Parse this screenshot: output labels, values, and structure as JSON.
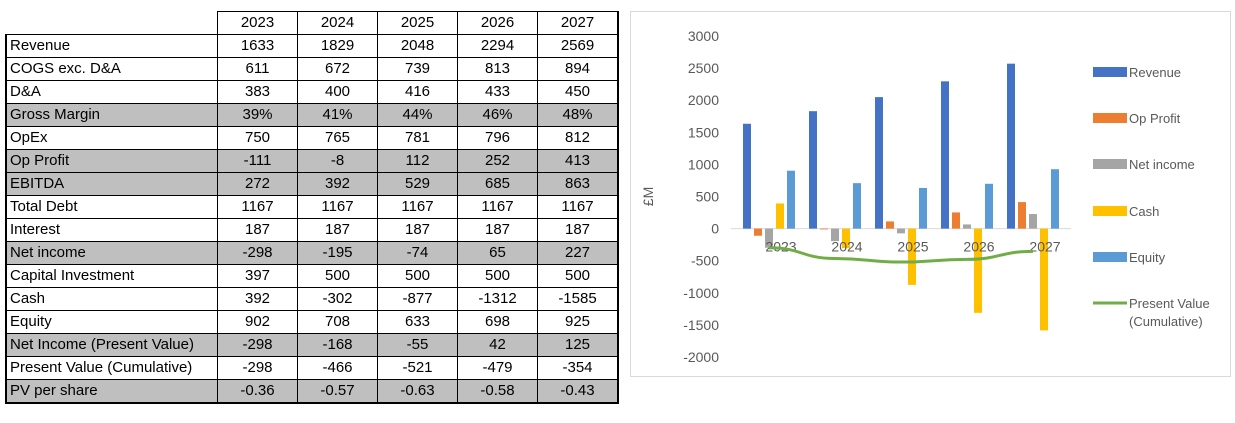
{
  "table": {
    "years": [
      "2023",
      "2024",
      "2025",
      "2026",
      "2027"
    ],
    "rows": [
      {
        "label": "Revenue",
        "values": [
          "1633",
          "1829",
          "2048",
          "2294",
          "2569"
        ],
        "shaded": false
      },
      {
        "label": "COGS exc. D&A",
        "values": [
          "611",
          "672",
          "739",
          "813",
          "894"
        ],
        "shaded": false
      },
      {
        "label": "D&A",
        "values": [
          "383",
          "400",
          "416",
          "433",
          "450"
        ],
        "shaded": false
      },
      {
        "label": "Gross Margin",
        "values": [
          "39%",
          "41%",
          "44%",
          "46%",
          "48%"
        ],
        "shaded": true
      },
      {
        "label": "OpEx",
        "values": [
          "750",
          "765",
          "781",
          "796",
          "812"
        ],
        "shaded": false
      },
      {
        "label": "Op Profit",
        "values": [
          "-111",
          "-8",
          "112",
          "252",
          "413"
        ],
        "shaded": true
      },
      {
        "label": "EBITDA",
        "values": [
          "272",
          "392",
          "529",
          "685",
          "863"
        ],
        "shaded": true
      },
      {
        "label": "Total Debt",
        "values": [
          "1167",
          "1167",
          "1167",
          "1167",
          "1167"
        ],
        "shaded": false
      },
      {
        "label": "Interest",
        "values": [
          "187",
          "187",
          "187",
          "187",
          "187"
        ],
        "shaded": false
      },
      {
        "label": "Net income",
        "values": [
          "-298",
          "-195",
          "-74",
          "65",
          "227"
        ],
        "shaded": true
      },
      {
        "label": "Capital Investment",
        "values": [
          "397",
          "500",
          "500",
          "500",
          "500"
        ],
        "shaded": false
      },
      {
        "label": "Cash",
        "values": [
          "392",
          "-302",
          "-877",
          "-1312",
          "-1585"
        ],
        "shaded": false
      },
      {
        "label": "Equity",
        "values": [
          "902",
          "708",
          "633",
          "698",
          "925"
        ],
        "shaded": false
      },
      {
        "label": "Net Income (Present Value)",
        "values": [
          "-298",
          "-168",
          "-55",
          "42",
          "125"
        ],
        "shaded": true
      },
      {
        "label": "Present Value (Cumulative)",
        "values": [
          "-298",
          "-466",
          "-521",
          "-479",
          "-354"
        ],
        "shaded": false
      },
      {
        "label": "PV per share",
        "values": [
          "-0.36",
          "-0.57",
          "-0.63",
          "-0.58",
          "-0.43"
        ],
        "shaded": true
      }
    ]
  },
  "chart_data": {
    "type": "bar",
    "title": "",
    "xlabel": "",
    "ylabel": "£M",
    "ylim": [
      -2000,
      3000
    ],
    "yticks": [
      3000,
      2500,
      2000,
      1500,
      1000,
      500,
      0,
      -500,
      -1000,
      -1500,
      -2000
    ],
    "categories": [
      "2023",
      "2024",
      "2025",
      "2026",
      "2027"
    ],
    "grid": false,
    "legend_position": "right",
    "series": [
      {
        "name": "Revenue",
        "kind": "bar",
        "color": "#4472c4",
        "values": [
          1633,
          1829,
          2048,
          2294,
          2569
        ]
      },
      {
        "name": "Op Profit",
        "kind": "bar",
        "color": "#ed7d31",
        "values": [
          -111,
          -8,
          112,
          252,
          413
        ]
      },
      {
        "name": "Net income",
        "kind": "bar",
        "color": "#a5a5a5",
        "values": [
          -298,
          -195,
          -74,
          65,
          227
        ]
      },
      {
        "name": "Cash",
        "kind": "bar",
        "color": "#ffc000",
        "values": [
          392,
          -302,
          -877,
          -1312,
          -1585
        ]
      },
      {
        "name": "Equity",
        "kind": "bar",
        "color": "#5b9bd5",
        "values": [
          902,
          708,
          633,
          698,
          925
        ]
      },
      {
        "name": "Present Value (Cumulative)",
        "kind": "line",
        "color": "#70ad47",
        "values": [
          -298,
          -466,
          -521,
          -479,
          -354
        ]
      }
    ]
  }
}
